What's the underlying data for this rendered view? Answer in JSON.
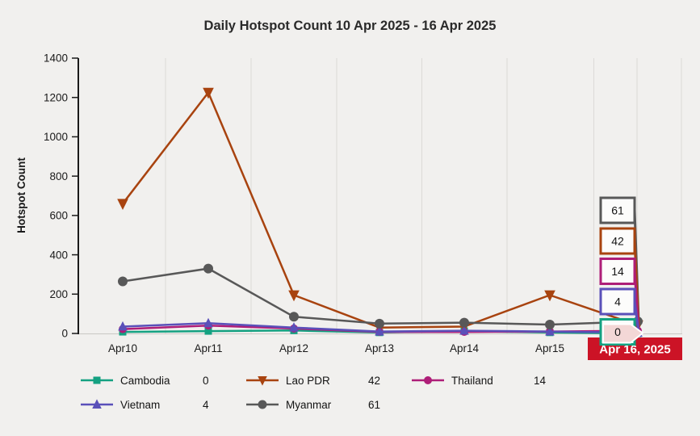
{
  "colors": {
    "background": "#f1f0ee",
    "title_text": "#2a2a2a",
    "axis": "#1a1a1a",
    "grid": "#dcdad7",
    "x_axis_line": "#c9c7c4",
    "tick_text": "#1a1a1a",
    "callout_fill": "#fcfcfb",
    "callout_pointer_fill": "#f3d7d6"
  },
  "chart_data": {
    "type": "line",
    "title": "Daily Hotspot Count 10 Apr 2025 - 16 Apr 2025",
    "xlabel": "",
    "ylabel": "Hotspot Count",
    "ylim": [
      0,
      1400
    ],
    "yticks": [
      0,
      200,
      400,
      600,
      800,
      1000,
      1200,
      1400
    ],
    "categories": [
      "Apr10",
      "Apr11",
      "Apr12",
      "Apr13",
      "Apr14",
      "Apr15",
      "Apr 16, 2025"
    ],
    "x_tick_labels": [
      "Apr10",
      "Apr11",
      "Apr12",
      "Apr13",
      "Apr14",
      "Apr15"
    ],
    "highlighted_category": {
      "label": "Apr 16, 2025",
      "bg_color": "#cc1326",
      "text_color": "#ffffff"
    },
    "grid": "vertical",
    "legend_position": "bottom",
    "series": [
      {
        "name": "Cambodia",
        "color": "#14a181",
        "marker": "square",
        "values": [
          8,
          12,
          15,
          5,
          12,
          5,
          0
        ],
        "current_value": 0
      },
      {
        "name": "Lao PDR",
        "color": "#a8430f",
        "marker": "triangle-down",
        "values": [
          660,
          1225,
          195,
          30,
          35,
          195,
          42
        ],
        "current_value": 42
      },
      {
        "name": "Thailand",
        "color": "#ae1e78",
        "marker": "circle",
        "values": [
          22,
          40,
          25,
          8,
          8,
          10,
          14
        ],
        "current_value": 14
      },
      {
        "name": "Vietnam",
        "color": "#5a50b9",
        "marker": "triangle-up",
        "values": [
          35,
          52,
          30,
          10,
          14,
          10,
          4
        ],
        "current_value": 4
      },
      {
        "name": "Myanmar",
        "color": "#585858",
        "marker": "circle",
        "values": [
          265,
          330,
          85,
          50,
          55,
          45,
          61
        ],
        "current_value": 61
      }
    ],
    "value_callouts": [
      {
        "series": "Myanmar",
        "value": 61
      },
      {
        "series": "Lao PDR",
        "value": 42
      },
      {
        "series": "Thailand",
        "value": 14
      },
      {
        "series": "Vietnam",
        "value": 4
      },
      {
        "series": "Cambodia",
        "value": 0
      }
    ]
  }
}
